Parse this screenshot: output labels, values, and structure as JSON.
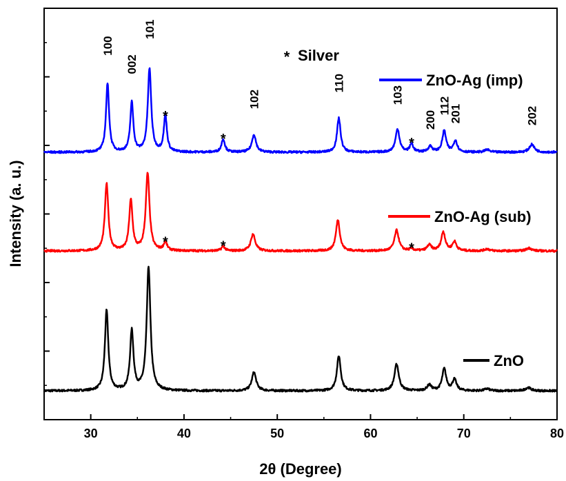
{
  "chart_data": {
    "type": "line",
    "xlabel": "2θ (Degree)",
    "ylabel": "Intensity (a. u.)",
    "xlim": [
      25,
      80
    ],
    "ylim": [
      0,
      100
    ],
    "x_ticks": [
      30,
      40,
      50,
      60,
      70,
      80
    ],
    "y_ticks_labeled": false,
    "grid": false,
    "legend_position": "right, beside each curve",
    "annotation_legend": "* Silver",
    "series": [
      {
        "name": "ZnO",
        "color": "#000000",
        "baseline": 7.0,
        "noise": 0.25,
        "peaks": [
          {
            "x": 31.7,
            "h": 19.5,
            "w": 0.22
          },
          {
            "x": 34.4,
            "h": 14.5,
            "w": 0.22
          },
          {
            "x": 36.2,
            "h": 30.0,
            "w": 0.24
          },
          {
            "x": 47.5,
            "h": 4.5,
            "w": 0.28
          },
          {
            "x": 56.6,
            "h": 8.5,
            "w": 0.25
          },
          {
            "x": 62.8,
            "h": 6.5,
            "w": 0.28
          },
          {
            "x": 66.3,
            "h": 1.4,
            "w": 0.28
          },
          {
            "x": 67.9,
            "h": 5.3,
            "w": 0.26
          },
          {
            "x": 69.0,
            "h": 2.7,
            "w": 0.26
          },
          {
            "x": 72.5,
            "h": 0.5,
            "w": 0.3
          },
          {
            "x": 76.9,
            "h": 0.8,
            "w": 0.35
          }
        ]
      },
      {
        "name": "ZnO-Ag (sub)",
        "color": "#ff0000",
        "baseline": 41.0,
        "noise": 0.25,
        "peaks": [
          {
            "x": 31.7,
            "h": 16.3,
            "w": 0.22
          },
          {
            "x": 34.3,
            "h": 12.2,
            "w": 0.22
          },
          {
            "x": 36.1,
            "h": 18.8,
            "w": 0.24
          },
          {
            "x": 38.0,
            "h": 2.0,
            "w": 0.22
          },
          {
            "x": 44.2,
            "h": 1.1,
            "w": 0.22
          },
          {
            "x": 47.4,
            "h": 4.1,
            "w": 0.28
          },
          {
            "x": 56.5,
            "h": 7.6,
            "w": 0.25
          },
          {
            "x": 62.8,
            "h": 5.0,
            "w": 0.28
          },
          {
            "x": 64.4,
            "h": 0.5,
            "w": 0.25
          },
          {
            "x": 66.3,
            "h": 1.4,
            "w": 0.28
          },
          {
            "x": 67.8,
            "h": 4.6,
            "w": 0.26
          },
          {
            "x": 69.0,
            "h": 2.2,
            "w": 0.26
          },
          {
            "x": 72.5,
            "h": 0.5,
            "w": 0.3
          },
          {
            "x": 77.0,
            "h": 0.7,
            "w": 0.35
          }
        ]
      },
      {
        "name": "ZnO-Ag (imp)",
        "color": "#0000ff",
        "baseline": 65.0,
        "noise": 0.25,
        "peaks": [
          {
            "x": 31.8,
            "h": 16.6,
            "w": 0.2
          },
          {
            "x": 34.4,
            "h": 12.0,
            "w": 0.2
          },
          {
            "x": 36.3,
            "h": 20.2,
            "w": 0.22
          },
          {
            "x": 38.0,
            "h": 8.8,
            "w": 0.2
          },
          {
            "x": 44.2,
            "h": 3.2,
            "w": 0.22
          },
          {
            "x": 47.5,
            "h": 4.3,
            "w": 0.26
          },
          {
            "x": 56.6,
            "h": 8.3,
            "w": 0.23
          },
          {
            "x": 62.9,
            "h": 5.6,
            "w": 0.26
          },
          {
            "x": 64.4,
            "h": 2.0,
            "w": 0.22
          },
          {
            "x": 66.4,
            "h": 1.4,
            "w": 0.26
          },
          {
            "x": 67.9,
            "h": 5.2,
            "w": 0.24
          },
          {
            "x": 69.1,
            "h": 2.8,
            "w": 0.24
          },
          {
            "x": 72.5,
            "h": 0.6,
            "w": 0.3
          },
          {
            "x": 77.3,
            "h": 1.9,
            "w": 0.32
          }
        ]
      }
    ],
    "peak_labels": [
      {
        "text": "100",
        "x": 31.8,
        "y": 88.5
      },
      {
        "text": "002",
        "x": 34.4,
        "y": 84.0
      },
      {
        "text": "101",
        "x": 36.3,
        "y": 92.5
      },
      {
        "text": "102",
        "x": 47.5,
        "y": 75.5
      },
      {
        "text": "110",
        "x": 56.6,
        "y": 79.5
      },
      {
        "text": "103",
        "x": 62.9,
        "y": 76.5
      },
      {
        "text": "200",
        "x": 66.4,
        "y": 70.5
      },
      {
        "text": "112",
        "x": 67.9,
        "y": 74.0
      },
      {
        "text": "201",
        "x": 69.1,
        "y": 72.0
      },
      {
        "text": "202",
        "x": 77.3,
        "y": 71.5
      }
    ],
    "silver_markers": [
      {
        "text": "*",
        "x": 38.0,
        "y": 74.0
      },
      {
        "text": "*",
        "x": 44.2,
        "y": 68.5
      },
      {
        "text": "*",
        "x": 64.4,
        "y": 67.5
      },
      {
        "text": "*",
        "x": 38.0,
        "y": 43.5
      },
      {
        "text": "*",
        "x": 44.2,
        "y": 42.5
      },
      {
        "text": "*",
        "x": 64.4,
        "y": 42.0
      }
    ]
  }
}
